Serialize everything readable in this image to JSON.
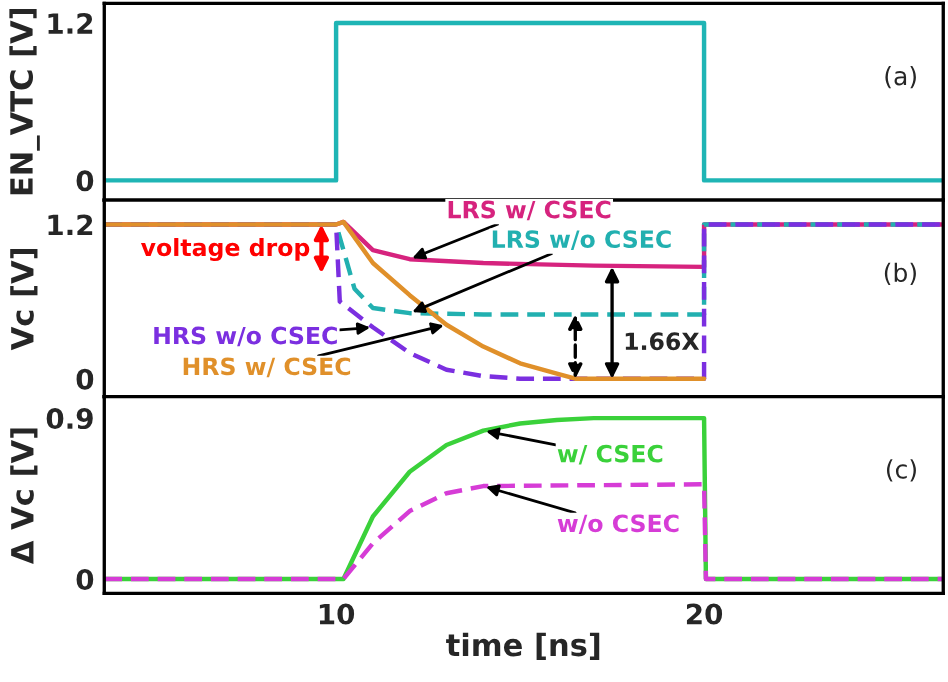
{
  "chart_data": [
    {
      "type": "line",
      "ylabel": "EN_VTC [V]",
      "annotations": [
        "(a)"
      ],
      "xlim": [
        3.7,
        26.5
      ],
      "xticks": [
        10,
        20
      ],
      "ylim": [
        -0.15,
        1.35
      ],
      "yticks": [
        0,
        1.2
      ],
      "tick_labels": "y",
      "grid": false,
      "legend": false,
      "series": [
        {
          "color": "#1fb5b5",
          "x": [
            3.7,
            10,
            10,
            20,
            20,
            26.5
          ],
          "values": [
            0,
            0,
            1.2,
            1.2,
            0,
            0
          ]
        }
      ]
    },
    {
      "type": "line",
      "ylabel": "Vc [V]",
      "annotations": [
        "(b)",
        "voltage drop",
        "1.66X"
      ],
      "xlim": [
        3.7,
        26.5
      ],
      "xticks": [
        10,
        20
      ],
      "ylim": [
        -0.14,
        1.39
      ],
      "yticks": [
        0,
        1.2
      ],
      "tick_labels": "y",
      "grid": false,
      "legend": false,
      "series": [
        {
          "name": "LRS w/ CSEC",
          "color": "#d6237e",
          "line_style": "solid",
          "x": [
            3.7,
            10,
            10.2,
            11,
            12,
            14,
            17,
            20,
            20,
            26.5
          ],
          "values": [
            1.2,
            1.2,
            1.22,
            1.0,
            0.93,
            0.9,
            0.88,
            0.87,
            1.2,
            1.2
          ]
        },
        {
          "name": "LRS w/o CSEC",
          "color": "#22b0b0",
          "line_style": "dashed",
          "x": [
            3.7,
            10,
            10.5,
            11,
            12,
            14,
            20,
            20,
            26.5
          ],
          "values": [
            1.2,
            1.2,
            0.7,
            0.55,
            0.51,
            0.5,
            0.5,
            1.2,
            1.2
          ]
        },
        {
          "name": "HRS w/o CSEC",
          "color": "#7b2fe0",
          "line_style": "dashed",
          "x": [
            3.7,
            10,
            10.1,
            11,
            12,
            13,
            14,
            15,
            20,
            20,
            26.5
          ],
          "values": [
            1.2,
            1.2,
            0.6,
            0.4,
            0.2,
            0.07,
            0.02,
            0,
            0,
            1.2,
            1.2
          ]
        },
        {
          "name": "HRS w/ CSEC",
          "color": "#e0902a",
          "line_style": "solid",
          "x": [
            3.7,
            10,
            10.2,
            11,
            12,
            13,
            14,
            15,
            16,
            16.5,
            20
          ],
          "values": [
            1.2,
            1.2,
            1.22,
            0.9,
            0.65,
            0.42,
            0.25,
            0.12,
            0.04,
            0,
            0
          ]
        }
      ]
    },
    {
      "type": "line",
      "ylabel": "Δ Vc [V]",
      "xlabel": "time [ns]",
      "annotations": [
        "(c)"
      ],
      "xlim": [
        3.7,
        26.5
      ],
      "xticks": [
        10,
        20
      ],
      "ylim": [
        -0.08,
        1.02
      ],
      "yticks": [
        0,
        0.9
      ],
      "grid": false,
      "legend": false,
      "series": [
        {
          "name": "w/ CSEC",
          "color": "#3ad13a",
          "line_style": "solid",
          "x": [
            3.7,
            10.2,
            11,
            12,
            13,
            14,
            15,
            16,
            17,
            20,
            20.05,
            26.5
          ],
          "values": [
            0,
            0,
            0.35,
            0.6,
            0.75,
            0.83,
            0.87,
            0.89,
            0.9,
            0.9,
            0,
            0
          ]
        },
        {
          "name": "w/o CSEC",
          "color": "#d63cd6",
          "line_style": "dashed",
          "x": [
            3.7,
            10.2,
            11,
            12,
            13,
            14,
            20,
            20.05,
            26.5
          ],
          "values": [
            0,
            0,
            0.2,
            0.38,
            0.48,
            0.52,
            0.53,
            0,
            0
          ]
        }
      ]
    }
  ]
}
